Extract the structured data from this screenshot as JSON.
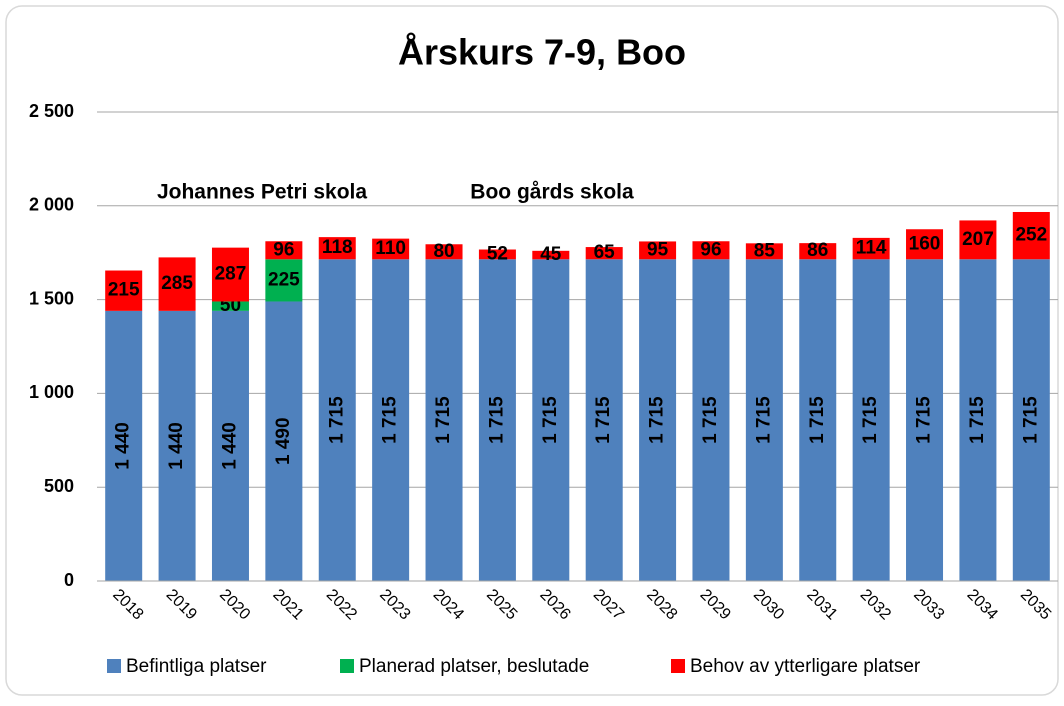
{
  "chart_data": {
    "type": "bar",
    "stacked": true,
    "title": "Årskurs 7-9, Boo",
    "annotations": [
      "Johannes Petri skola",
      "Boo gårds skola"
    ],
    "categories": [
      "2018",
      "2019",
      "2020",
      "2021",
      "2022",
      "2023",
      "2024",
      "2025",
      "2026",
      "2027",
      "2028",
      "2029",
      "2030",
      "2031",
      "2032",
      "2033",
      "2034",
      "2035"
    ],
    "series": [
      {
        "name": "Befintliga platser",
        "color": "#4f81bd",
        "values": [
          1440,
          1440,
          1440,
          1490,
          1715,
          1715,
          1715,
          1715,
          1715,
          1715,
          1715,
          1715,
          1715,
          1715,
          1715,
          1715,
          1715,
          1715
        ],
        "value_labels": [
          "1 440",
          "1 440",
          "1 440",
          "1 490",
          "1 715",
          "1 715",
          "1 715",
          "1 715",
          "1 715",
          "1 715",
          "1 715",
          "1 715",
          "1 715",
          "1 715",
          "1 715",
          "1 715",
          "1 715",
          "1 715"
        ]
      },
      {
        "name": "Planerad platser, beslutade",
        "color": "#00b050",
        "values": [
          null,
          null,
          50,
          225,
          null,
          null,
          null,
          null,
          null,
          null,
          null,
          null,
          null,
          null,
          null,
          null,
          null,
          null
        ]
      },
      {
        "name": "Behov av ytterligare platser",
        "color": "#ff0000",
        "values": [
          215,
          285,
          287,
          96,
          118,
          110,
          80,
          52,
          45,
          65,
          95,
          96,
          85,
          86,
          114,
          160,
          207,
          252
        ]
      }
    ],
    "ylim": [
      0,
      2500
    ],
    "yticks": [
      0,
      500,
      {
        "value": 1000,
        "label": "1 000"
      },
      {
        "value": 1500,
        "label": "1 500"
      },
      {
        "value": 2000,
        "label": "2 000"
      },
      {
        "value": 2500,
        "label": "2 500"
      }
    ],
    "grid": true,
    "legend": "bottom"
  }
}
